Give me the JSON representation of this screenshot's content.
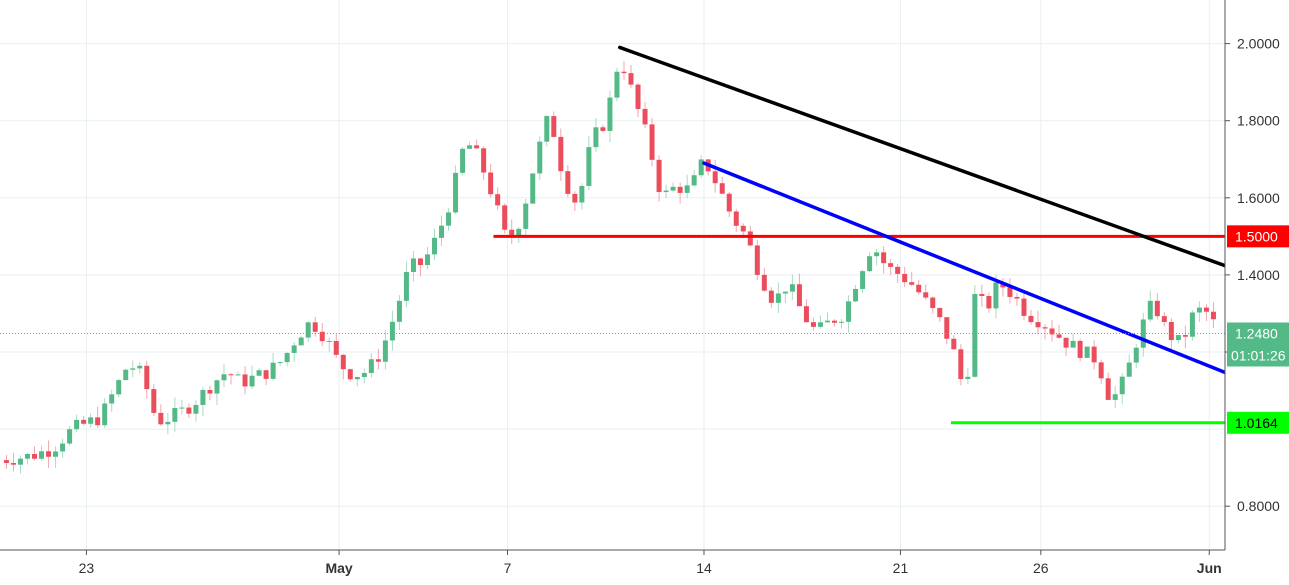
{
  "chart_data": {
    "type": "candlestick",
    "y_axis": {
      "side": "right",
      "ticks": [
        "0.8000",
        "1.2000",
        "1.4000",
        "1.6000",
        "1.8000",
        "2.0000"
      ],
      "ylim": [
        0.68,
        2.07
      ]
    },
    "x_axis": {
      "ticks": [
        {
          "label": "23",
          "day": -8
        },
        {
          "label": "May",
          "day": 1
        },
        {
          "label": "7",
          "day": 7
        },
        {
          "label": "14",
          "day": 14
        },
        {
          "label": "21",
          "day": 21
        },
        {
          "label": "26",
          "day": 26
        },
        {
          "label": "Jun",
          "day": 32
        }
      ]
    },
    "grid": true,
    "series": [
      {
        "kind": "ohlc_close_path",
        "points": [
          [
            -11.1,
            0.92
          ],
          [
            -10.0,
            0.93
          ],
          [
            -9.2,
            0.95
          ],
          [
            -8.5,
            1.0
          ],
          [
            -7.5,
            1.03
          ],
          [
            -7.0,
            1.1
          ],
          [
            -6.5,
            1.17
          ],
          [
            -6.0,
            1.14
          ],
          [
            -5.5,
            1.02
          ],
          [
            -5.0,
            1.03
          ],
          [
            -4.5,
            1.05
          ],
          [
            -4.0,
            1.08
          ],
          [
            -3.5,
            1.12
          ],
          [
            -3.0,
            1.15
          ],
          [
            -2.5,
            1.12
          ],
          [
            -1.5,
            1.15
          ],
          [
            -1.0,
            1.18
          ],
          [
            -0.5,
            1.24
          ],
          [
            0.0,
            1.28
          ],
          [
            0.5,
            1.24
          ],
          [
            1.0,
            1.17
          ],
          [
            1.5,
            1.14
          ],
          [
            2.0,
            1.15
          ],
          [
            2.5,
            1.2
          ],
          [
            3.0,
            1.3
          ],
          [
            3.5,
            1.42
          ],
          [
            4.0,
            1.43
          ],
          [
            4.5,
            1.5
          ],
          [
            5.0,
            1.6
          ],
          [
            5.5,
            1.75
          ],
          [
            6.0,
            1.7
          ],
          [
            6.5,
            1.6
          ],
          [
            7.0,
            1.48
          ],
          [
            7.5,
            1.55
          ],
          [
            8.0,
            1.7
          ],
          [
            8.5,
            1.82
          ],
          [
            9.0,
            1.65
          ],
          [
            9.5,
            1.58
          ],
          [
            10.0,
            1.75
          ],
          [
            10.5,
            1.8
          ],
          [
            11.0,
            1.97
          ],
          [
            11.5,
            1.86
          ],
          [
            12.0,
            1.75
          ],
          [
            12.5,
            1.6
          ],
          [
            13.0,
            1.63
          ],
          [
            13.5,
            1.62
          ],
          [
            14.0,
            1.7
          ],
          [
            14.5,
            1.63
          ],
          [
            15.0,
            1.55
          ],
          [
            15.5,
            1.5
          ],
          [
            16.0,
            1.4
          ],
          [
            16.5,
            1.33
          ],
          [
            17.0,
            1.38
          ],
          [
            17.5,
            1.3
          ],
          [
            18.0,
            1.25
          ],
          [
            18.5,
            1.28
          ],
          [
            19.0,
            1.3
          ],
          [
            19.5,
            1.4
          ],
          [
            20.0,
            1.48
          ],
          [
            20.5,
            1.42
          ],
          [
            21.0,
            1.4
          ],
          [
            21.5,
            1.37
          ],
          [
            22.0,
            1.32
          ],
          [
            22.5,
            1.27
          ],
          [
            23.0,
            1.18
          ],
          [
            23.3,
            1.08
          ],
          [
            23.7,
            1.38
          ],
          [
            24.0,
            1.3
          ],
          [
            24.5,
            1.38
          ],
          [
            25.0,
            1.35
          ],
          [
            25.5,
            1.3
          ],
          [
            26.0,
            1.28
          ],
          [
            26.5,
            1.25
          ],
          [
            27.0,
            1.22
          ],
          [
            27.5,
            1.2
          ],
          [
            28.0,
            1.18
          ],
          [
            28.5,
            1.07
          ],
          [
            29.0,
            1.13
          ],
          [
            29.5,
            1.25
          ],
          [
            30.0,
            1.33
          ],
          [
            30.5,
            1.25
          ],
          [
            31.0,
            1.22
          ],
          [
            31.5,
            1.31
          ],
          [
            32.0,
            1.3
          ],
          [
            32.3,
            1.25
          ]
        ]
      }
    ],
    "levels": [
      {
        "name": "resistance",
        "value": 1.5,
        "label": "1.5000",
        "color": "#ff0000"
      },
      {
        "name": "support",
        "value": 1.0164,
        "label": "1.0164",
        "color": "#00ff00"
      }
    ],
    "trendlines": [
      {
        "name": "upper-downtrend-line",
        "color": "#000000",
        "from": [
          11.0,
          1.99
        ],
        "to": [
          35.0,
          1.36
        ]
      },
      {
        "name": "lower-downtrend-line",
        "color": "#0000ff",
        "from": [
          14.0,
          1.69
        ],
        "to": [
          32.8,
          1.14
        ]
      }
    ],
    "current_price": {
      "value": 1.248,
      "label": "1.2480",
      "countdown": "01:01:26",
      "color": "#53b987"
    },
    "colors": {
      "up": "#53b987",
      "down": "#eb4d5c",
      "grid": "#e9eff3",
      "axis_text": "#333333"
    }
  }
}
